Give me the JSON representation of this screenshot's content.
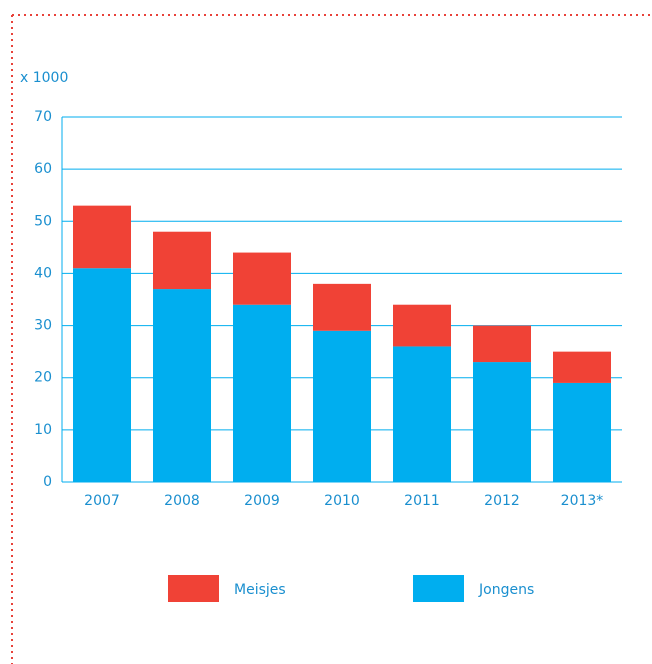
{
  "chart_data": {
    "type": "bar",
    "stacked": true,
    "y_label": "x 1000",
    "categories": [
      "2007",
      "2008",
      "2009",
      "2010",
      "2011",
      "2012",
      "2013*"
    ],
    "series": [
      {
        "name": "Jongens",
        "color": "#00aeef",
        "values": [
          41,
          37,
          34,
          29,
          26,
          23,
          19
        ]
      },
      {
        "name": "Meisjes",
        "color": "#f04236",
        "values": [
          12,
          11,
          10,
          9,
          8,
          7,
          6
        ]
      }
    ],
    "ylim": [
      0,
      70
    ],
    "yticks": [
      0,
      10,
      20,
      30,
      40,
      50,
      60,
      70
    ],
    "grid": true,
    "legend": "bottom"
  }
}
